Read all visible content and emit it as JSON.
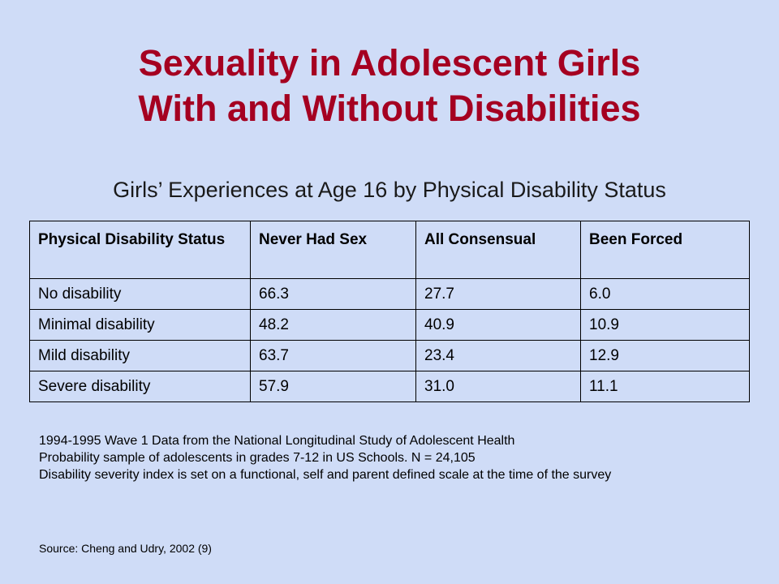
{
  "slide": {
    "title_line1": "Sexuality in Adolescent Girls",
    "title_line2": "With and Without Disabilities",
    "subtitle": "Girls’ Experiences at Age 16 by Physical Disability Status"
  },
  "table": {
    "headers": [
      "Physical Disability Status",
      "Never Had Sex",
      "All Consensual",
      "Been Forced"
    ],
    "rows": [
      [
        "No disability",
        "66.3",
        "27.7",
        "6.0"
      ],
      [
        "Minimal disability",
        "48.2",
        "40.9",
        "10.9"
      ],
      [
        "Mild disability",
        "63.7",
        "23.4",
        "12.9"
      ],
      [
        "Severe disability",
        "57.9",
        "31.0",
        "11.1"
      ]
    ]
  },
  "notes": {
    "line1": "1994-1995 Wave 1 Data from the National Longitudinal Study of Adolescent Health",
    "line2": "Probability sample of adolescents in grades 7-12 in US Schools. N = 24,105",
    "line3": "Disability severity index is set on a functional, self and parent defined scale at the time of the survey"
  },
  "source": "Source: Cheng and Udry, 2002 (9)",
  "colors": {
    "background": "#cfdcf7",
    "title": "#a50021"
  }
}
